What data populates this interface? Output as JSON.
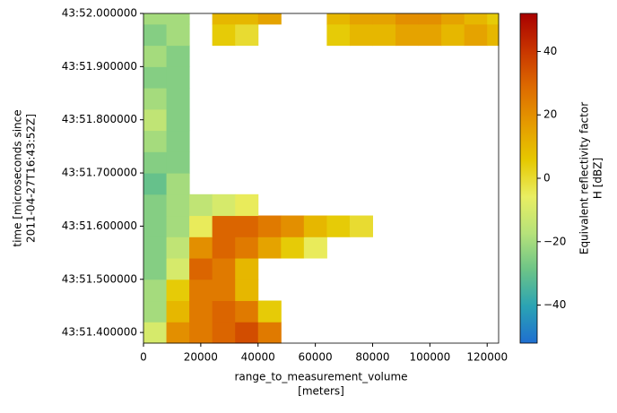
{
  "chart_data": {
    "type": "heatmap",
    "xlabel": [
      "range_to_measurement_volume",
      "[meters]"
    ],
    "ylabel": [
      "time [microseconds since",
      "2011-04-27T16:43:52Z]"
    ],
    "colorbar_label": [
      "Equivalent reflectivity factor",
      "H [dBZ]"
    ],
    "xlim": [
      0,
      124000
    ],
    "xticks": [
      0,
      20000,
      40000,
      60000,
      80000,
      100000,
      120000
    ],
    "ylim": [
      51.38,
      52.0
    ],
    "yticks": [
      {
        "value": 51.4,
        "label": "43:51.400000"
      },
      {
        "value": 51.5,
        "label": "43:51.500000"
      },
      {
        "value": 51.6,
        "label": "43:51.600000"
      },
      {
        "value": 51.7,
        "label": "43:51.700000"
      },
      {
        "value": 51.8,
        "label": "43:51.800000"
      },
      {
        "value": 51.9,
        "label": "43:51.900000"
      },
      {
        "value": 52.0,
        "label": "43:52.000000"
      }
    ],
    "clim": [
      -52,
      52
    ],
    "cticks": [
      {
        "value": -40,
        "label": "−40"
      },
      {
        "value": -20,
        "label": "−20"
      },
      0,
      20,
      40
    ],
    "colormap": [
      "#1f6fd0",
      "#2aa3b4",
      "#6cc487",
      "#b6e27a",
      "#e9ee62",
      "#e6c800",
      "#e59a00",
      "#dd6a00",
      "#c83400",
      "#a80000"
    ],
    "xbins": [
      0,
      8000,
      16000,
      24000,
      32000,
      40000,
      48000,
      56000,
      64000,
      72000,
      80000,
      88000,
      96000,
      104000,
      112000,
      120000,
      124000
    ],
    "ybins": [
      51.38,
      51.42,
      51.46,
      51.5,
      51.54,
      51.58,
      51.62,
      51.66,
      51.7,
      51.74,
      51.78,
      51.82,
      51.86,
      51.9,
      51.94,
      51.98,
      52.0
    ],
    "z": [
      [
        -10,
        20,
        25,
        30,
        35,
        25,
        null,
        null,
        null,
        null,
        null,
        null,
        null,
        null,
        null,
        null
      ],
      [
        -20,
        10,
        25,
        30,
        25,
        5,
        null,
        null,
        null,
        null,
        null,
        null,
        null,
        null,
        null,
        null
      ],
      [
        -20,
        5,
        25,
        25,
        10,
        null,
        null,
        null,
        null,
        null,
        null,
        null,
        null,
        null,
        null,
        null
      ],
      [
        -25,
        -10,
        30,
        25,
        10,
        null,
        null,
        null,
        null,
        null,
        null,
        null,
        null,
        null,
        null,
        null
      ],
      [
        -25,
        -15,
        20,
        30,
        25,
        15,
        5,
        -5,
        null,
        null,
        null,
        null,
        null,
        null,
        null,
        null
      ],
      [
        -25,
        -20,
        -5,
        30,
        30,
        25,
        20,
        10,
        5,
        0,
        null,
        null,
        null,
        null,
        null,
        null
      ],
      [
        -25,
        -20,
        -15,
        -10,
        -5,
        null,
        null,
        null,
        null,
        null,
        null,
        null,
        null,
        null,
        null,
        null
      ],
      [
        -30,
        -20,
        null,
        null,
        null,
        null,
        null,
        null,
        null,
        null,
        null,
        null,
        null,
        null,
        null,
        null
      ],
      [
        -25,
        -25,
        null,
        null,
        null,
        null,
        null,
        null,
        null,
        null,
        null,
        null,
        null,
        null,
        null,
        null
      ],
      [
        -20,
        -25,
        null,
        null,
        null,
        null,
        null,
        null,
        null,
        null,
        null,
        null,
        null,
        null,
        null,
        null
      ],
      [
        -15,
        -25,
        null,
        null,
        null,
        null,
        null,
        null,
        null,
        null,
        null,
        null,
        null,
        null,
        null,
        null
      ],
      [
        -20,
        -25,
        null,
        null,
        null,
        null,
        null,
        null,
        null,
        null,
        null,
        null,
        null,
        null,
        null,
        null
      ],
      [
        -25,
        -25,
        null,
        null,
        null,
        null,
        null,
        null,
        null,
        null,
        null,
        null,
        null,
        null,
        null,
        null
      ],
      [
        -20,
        -25,
        null,
        null,
        null,
        null,
        null,
        null,
        null,
        null,
        null,
        null,
        null,
        null,
        null,
        null
      ],
      [
        -25,
        -20,
        null,
        5,
        0,
        null,
        null,
        null,
        5,
        10,
        10,
        15,
        15,
        10,
        15,
        10
      ],
      [
        -20,
        -20,
        null,
        10,
        10,
        15,
        null,
        null,
        10,
        15,
        15,
        20,
        20,
        15,
        10,
        5
      ]
    ]
  }
}
